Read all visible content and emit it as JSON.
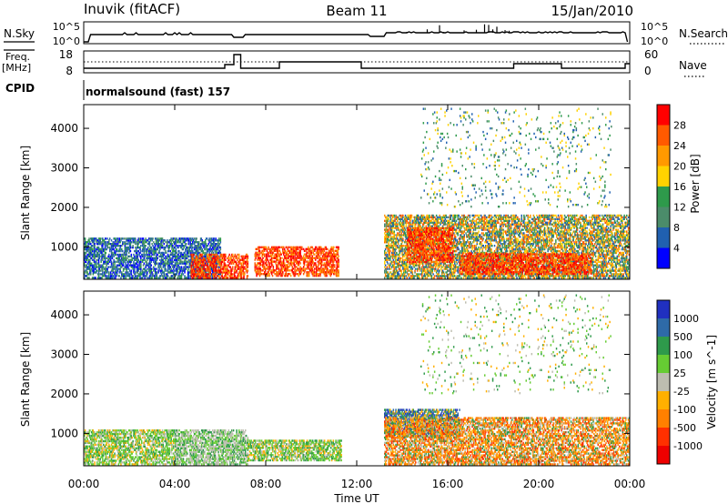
{
  "header": {
    "station": "Inuvik (fitACF)",
    "beam": "Beam 11",
    "date": "15/Jan/2010"
  },
  "top_panels": {
    "nsky_label": "N.Sky",
    "nsky_scale_top": "10^5",
    "nsky_scale_bottom": "10^0",
    "nsearch_label": "N.Search",
    "freq_label": "Freq.",
    "freq_unit": "[MHz]",
    "freq_ticks": [
      "18",
      "8"
    ],
    "nave_label": "Nave",
    "nave_ticks": [
      "60",
      "0"
    ],
    "cpid_label": "CPID",
    "cpid_value": "normalsound (fast) 157"
  },
  "chart_data": [
    {
      "type": "heatmap",
      "title": "",
      "quantity": "Power",
      "ylabel": "Slant Range [km]",
      "xlabel": "",
      "ylim": [
        180,
        4600
      ],
      "xlim": [
        "00:00",
        "24:00"
      ],
      "y_ticks": [
        "1000",
        "2000",
        "3000",
        "4000"
      ],
      "x_ticks": [
        "00:00",
        "04:00",
        "08:00",
        "12:00",
        "16:00",
        "20:00",
        "00:00"
      ],
      "colorbar": {
        "label": "Power [dB]",
        "ticks": [
          "28",
          "24",
          "20",
          "16",
          "12",
          "8",
          "4"
        ],
        "colors": [
          "#ff0000",
          "#ff5a00",
          "#ff9900",
          "#ffd200",
          "#2e9a4b",
          "#4b8c6a",
          "#2060b0",
          "#0000ff"
        ]
      },
      "regions": [
        {
          "t0": 0.0,
          "t1": 6.0,
          "r0": 200,
          "r1": 1200,
          "level": "low"
        },
        {
          "t0": 4.7,
          "t1": 7.2,
          "r0": 200,
          "r1": 800,
          "level": "high"
        },
        {
          "t0": 7.5,
          "t1": 11.2,
          "r0": 250,
          "r1": 1000,
          "level": "high"
        },
        {
          "t0": 13.2,
          "t1": 24.0,
          "r0": 200,
          "r1": 1800,
          "level": "mid"
        },
        {
          "t0": 14.2,
          "t1": 16.2,
          "r0": 600,
          "r1": 1500,
          "level": "high"
        },
        {
          "t0": 16.5,
          "t1": 22.3,
          "r0": 300,
          "r1": 800,
          "level": "high"
        },
        {
          "t0": 14.8,
          "t1": 23.2,
          "r0": 2000,
          "r1": 4500,
          "level": "sparse"
        }
      ]
    },
    {
      "type": "heatmap",
      "title": "",
      "quantity": "Velocity",
      "ylabel": "Slant Range [km]",
      "xlabel": "Time UT",
      "ylim": [
        180,
        4600
      ],
      "xlim": [
        "00:00",
        "24:00"
      ],
      "y_ticks": [
        "1000",
        "2000",
        "3000",
        "4000"
      ],
      "x_ticks": [
        "00:00",
        "04:00",
        "08:00",
        "12:00",
        "16:00",
        "20:00",
        "00:00"
      ],
      "colorbar": {
        "label": "Velocity [m s^-1]",
        "ticks": [
          "1000",
          "500",
          "100",
          "25",
          "-25",
          "-100",
          "-500",
          "-1000"
        ],
        "colors": [
          "#2030c0",
          "#2e6aa8",
          "#2e9a4b",
          "#66cc33",
          "#bdbdb0",
          "#ffb000",
          "#ff8000",
          "#ff3000",
          "#ee0000"
        ]
      },
      "regions": [
        {
          "t0": 0.0,
          "t1": 4.0,
          "r0": 200,
          "r1": 1100,
          "level": "green"
        },
        {
          "t0": 4.0,
          "t1": 7.2,
          "r0": 200,
          "r1": 1100,
          "level": "grey"
        },
        {
          "t0": 7.2,
          "t1": 11.3,
          "r0": 300,
          "r1": 800,
          "level": "green"
        },
        {
          "t0": 13.2,
          "t1": 16.5,
          "r0": 900,
          "r1": 1600,
          "level": "blue"
        },
        {
          "t0": 13.2,
          "t1": 24.0,
          "r0": 200,
          "r1": 1400,
          "level": "orange"
        },
        {
          "t0": 14.8,
          "t1": 23.2,
          "r0": 2000,
          "r1": 4500,
          "level": "sparse"
        }
      ]
    }
  ]
}
